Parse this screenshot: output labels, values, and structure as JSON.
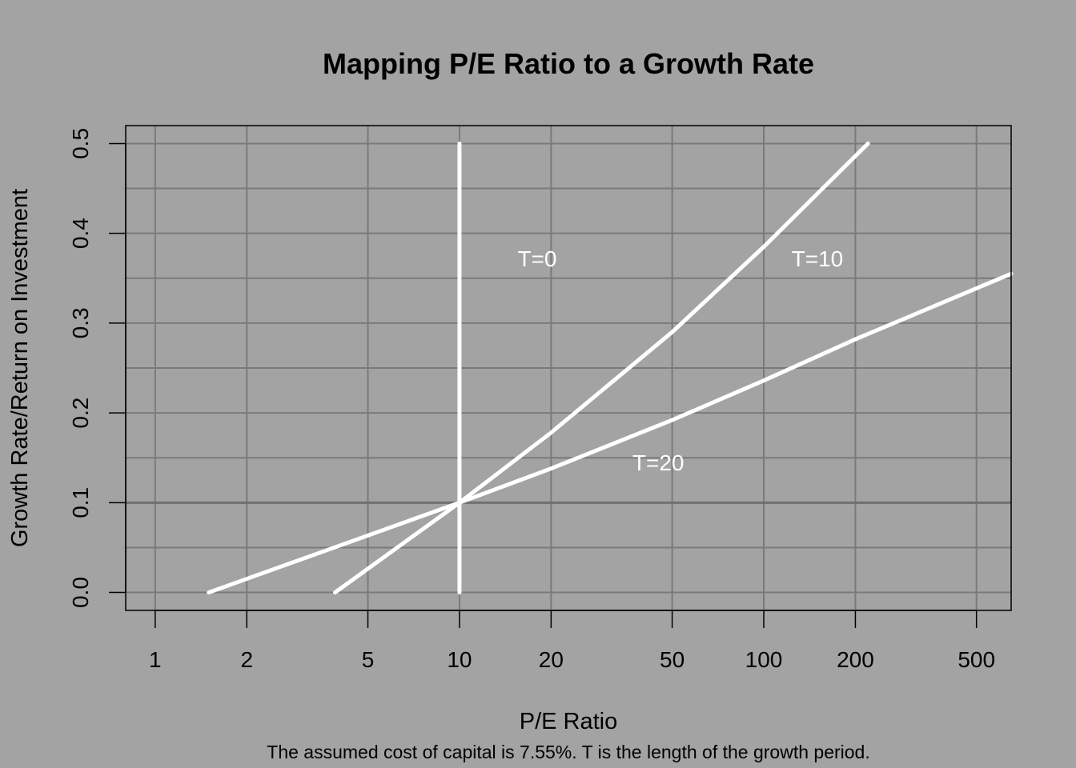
{
  "chart_data": {
    "type": "line",
    "title": "Mapping P/E Ratio to a Growth Rate",
    "xlabel": "P/E Ratio",
    "ylabel": "Growth Rate/Return on Investment",
    "caption": "The assumed cost of capital is 7.55%.  T is the length of the growth period.",
    "x_scale": "log",
    "xlim": [
      0.8,
      650
    ],
    "ylim": [
      -0.02,
      0.52
    ],
    "x_ticks": [
      1,
      2,
      5,
      10,
      20,
      50,
      100,
      200,
      500
    ],
    "x_tick_labels": [
      "1",
      "2",
      "5",
      "10",
      "20",
      "50",
      "100",
      "200",
      "500"
    ],
    "y_ticks": [
      0.0,
      0.1,
      0.2,
      0.3,
      0.4,
      0.5
    ],
    "y_tick_labels": [
      "0.0",
      "0.1",
      "0.2",
      "0.3",
      "0.4",
      "0.5"
    ],
    "grid": true,
    "background": "#a3a3a3",
    "series_color": "#ffffff",
    "series": [
      {
        "name": "T=0",
        "x": [
          10,
          10
        ],
        "y": [
          0.0,
          0.5
        ]
      },
      {
        "name": "T=10",
        "x": [
          3.9,
          10,
          20,
          50,
          100,
          220
        ],
        "y": [
          0.0,
          0.1,
          0.178,
          0.29,
          0.385,
          0.5
        ]
      },
      {
        "name": "T=20",
        "x": [
          1.5,
          10,
          20,
          50,
          100,
          200,
          650
        ],
        "y": [
          0.0,
          0.1,
          0.138,
          0.192,
          0.236,
          0.282,
          0.355
        ]
      }
    ],
    "annotations": [
      {
        "text": "T=0",
        "x": 18,
        "y": 0.372
      },
      {
        "text": "T=10",
        "x": 150,
        "y": 0.372
      },
      {
        "text": "T=20",
        "x": 45,
        "y": 0.145
      }
    ]
  }
}
